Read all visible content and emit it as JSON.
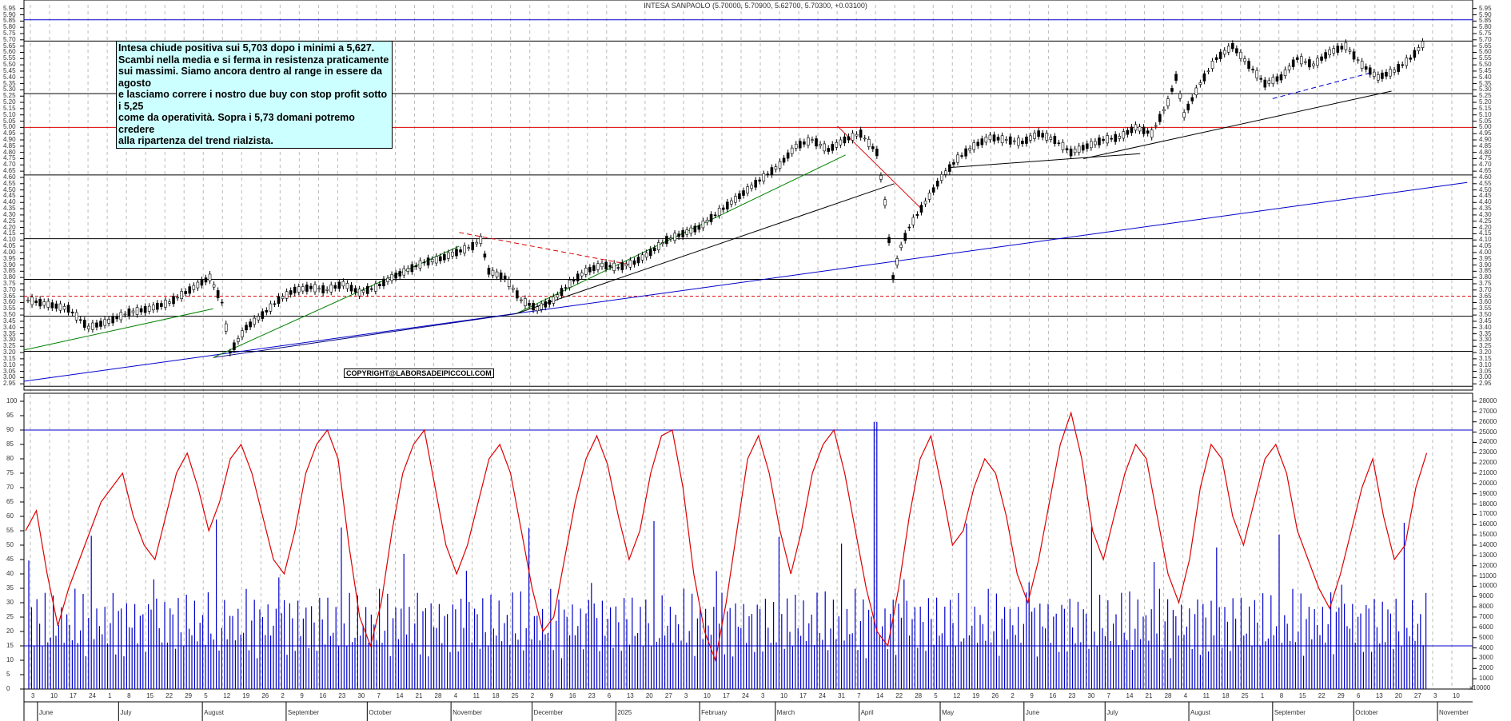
{
  "header": {
    "title": "INTESA SANPAOLO (5.70000, 5.70900, 5.62700, 5.70300, +0.03100)"
  },
  "annotation": {
    "text": "Intesa chiude positiva sui 5,703 dopo i minimi a 5,627.\nScambi nella media e si ferma in resistenza praticamente\nsui massimi. Siamo ancora dentro al range in essere da agosto\ne lasciamo correre i nostro due buy con stop profit sotto i 5,25\ncome da operatività.  Sopra i 5,73 domani potremo credere\nalla ripartenza del trend rialzista."
  },
  "copyright": "COPYRIGHT@LABORSADEIPICCOLI.COM",
  "volume_unit": "x10000",
  "chart_data": [
    {
      "type": "candlestick",
      "title": "INTESA SANPAOLO (5.70000, 5.70900, 5.62700, 5.70300, +0.03100)",
      "last": {
        "open": 5.7,
        "high": 5.709,
        "low": 5.627,
        "close": 5.703,
        "change": 0.031
      },
      "ylim": [
        2.9,
        5.98
      ],
      "yticks": [
        2.95,
        3.0,
        3.05,
        3.1,
        3.15,
        3.2,
        3.25,
        3.3,
        3.35,
        3.4,
        3.45,
        3.5,
        3.55,
        3.6,
        3.65,
        3.7,
        3.75,
        3.8,
        3.85,
        3.9,
        3.95,
        4.0,
        4.05,
        4.1,
        4.15,
        4.2,
        4.25,
        4.3,
        4.35,
        4.4,
        4.45,
        4.5,
        4.55,
        4.6,
        4.65,
        4.7,
        4.75,
        4.8,
        4.85,
        4.9,
        4.95,
        5.0,
        5.05,
        5.1,
        5.15,
        5.2,
        5.25,
        5.3,
        5.35,
        5.4,
        5.45,
        5.5,
        5.55,
        5.6,
        5.65,
        5.7,
        5.75,
        5.8,
        5.85,
        5.9,
        5.95
      ],
      "horizontal_levels": [
        {
          "value": 5.86,
          "color": "#0000cc"
        },
        {
          "value": 5.69,
          "color": "#000000"
        },
        {
          "value": 5.27,
          "color": "#000000"
        },
        {
          "value": 5.0,
          "color": "#dd0000"
        },
        {
          "value": 4.62,
          "color": "#000000"
        },
        {
          "value": 4.11,
          "color": "#000000"
        },
        {
          "value": 3.785,
          "color": "#000000"
        },
        {
          "value": 3.65,
          "color": "#dd0000",
          "dashed": true
        },
        {
          "value": 3.49,
          "color": "#000000"
        },
        {
          "value": 3.21,
          "color": "#000000"
        },
        {
          "value": 2.93,
          "color": "#000000"
        }
      ],
      "price_path": [
        [
          0,
          3.62
        ],
        [
          10,
          3.55
        ],
        [
          15,
          3.4
        ],
        [
          20,
          3.45
        ],
        [
          25,
          3.52
        ],
        [
          30,
          3.55
        ],
        [
          35,
          3.6
        ],
        [
          40,
          3.7
        ],
        [
          45,
          3.8
        ],
        [
          48,
          3.6
        ],
        [
          50,
          3.2
        ],
        [
          54,
          3.4
        ],
        [
          58,
          3.5
        ],
        [
          62,
          3.62
        ],
        [
          66,
          3.7
        ],
        [
          70,
          3.72
        ],
        [
          74,
          3.7
        ],
        [
          78,
          3.75
        ],
        [
          82,
          3.68
        ],
        [
          86,
          3.72
        ],
        [
          90,
          3.8
        ],
        [
          94,
          3.86
        ],
        [
          98,
          3.92
        ],
        [
          102,
          3.95
        ],
        [
          106,
          4.0
        ],
        [
          110,
          4.05
        ],
        [
          112,
          4.1
        ],
        [
          114,
          3.85
        ],
        [
          118,
          3.8
        ],
        [
          122,
          3.62
        ],
        [
          126,
          3.55
        ],
        [
          130,
          3.62
        ],
        [
          134,
          3.75
        ],
        [
          138,
          3.85
        ],
        [
          142,
          3.9
        ],
        [
          146,
          3.88
        ],
        [
          150,
          3.92
        ],
        [
          154,
          4.0
        ],
        [
          158,
          4.1
        ],
        [
          162,
          4.15
        ],
        [
          166,
          4.2
        ],
        [
          170,
          4.3
        ],
        [
          174,
          4.4
        ],
        [
          178,
          4.5
        ],
        [
          182,
          4.6
        ],
        [
          186,
          4.7
        ],
        [
          190,
          4.85
        ],
        [
          194,
          4.9
        ],
        [
          198,
          4.82
        ],
        [
          202,
          4.9
        ],
        [
          206,
          4.95
        ],
        [
          210,
          4.8
        ],
        [
          212,
          4.4
        ],
        [
          214,
          3.8
        ],
        [
          216,
          4.05
        ],
        [
          218,
          4.2
        ],
        [
          222,
          4.4
        ],
        [
          226,
          4.6
        ],
        [
          230,
          4.75
        ],
        [
          234,
          4.85
        ],
        [
          238,
          4.92
        ],
        [
          242,
          4.9
        ],
        [
          246,
          4.88
        ],
        [
          250,
          4.95
        ],
        [
          254,
          4.9
        ],
        [
          258,
          4.8
        ],
        [
          262,
          4.85
        ],
        [
          266,
          4.9
        ],
        [
          270,
          4.92
        ],
        [
          274,
          5.0
        ],
        [
          278,
          4.95
        ],
        [
          282,
          5.2
        ],
        [
          284,
          5.4
        ],
        [
          286,
          5.1
        ],
        [
          290,
          5.35
        ],
        [
          294,
          5.55
        ],
        [
          298,
          5.65
        ],
        [
          302,
          5.5
        ],
        [
          306,
          5.35
        ],
        [
          310,
          5.4
        ],
        [
          314,
          5.55
        ],
        [
          318,
          5.5
        ],
        [
          322,
          5.6
        ],
        [
          326,
          5.65
        ],
        [
          330,
          5.5
        ],
        [
          334,
          5.4
        ],
        [
          338,
          5.45
        ],
        [
          342,
          5.55
        ],
        [
          346,
          5.7
        ]
      ],
      "trendlines": [
        {
          "color": "#0000cc",
          "from": [
            "2024-05-27",
            2.97
          ],
          "to": [
            "2025-11-12",
            4.56
          ]
        },
        {
          "color": "#000080",
          "from": [
            "2024-08-05",
            3.16
          ],
          "to": [
            "2024-11-25",
            3.51
          ]
        },
        {
          "color": "#008000",
          "from": [
            "2024-05-27",
            3.22
          ],
          "to": [
            "2024-08-05",
            3.55
          ]
        },
        {
          "color": "#008000",
          "from": [
            "2024-08-05",
            3.16
          ],
          "to": [
            "2024-11-04",
            4.05
          ]
        },
        {
          "color": "#008000",
          "from": [
            "2024-11-25",
            3.51
          ],
          "to": [
            "2025-03-27",
            4.78
          ]
        },
        {
          "color": "#000000",
          "from": [
            "2024-11-25",
            3.51
          ],
          "to": [
            "2025-04-14",
            4.55
          ]
        },
        {
          "color": "#dd0000",
          "dashed": true,
          "from": [
            "2024-11-04",
            4.16
          ],
          "to": [
            "2025-01-07",
            3.9
          ]
        },
        {
          "color": "#dd0000",
          "from": [
            "2025-03-24",
            5.01
          ],
          "to": [
            "2025-04-24",
            4.35
          ]
        },
        {
          "color": "#000000",
          "from": [
            "2025-05-05",
            4.68
          ],
          "to": [
            "2025-07-14",
            4.79
          ]
        },
        {
          "color": "#000000",
          "from": [
            "2025-06-23",
            4.75
          ],
          "to": [
            "2025-10-15",
            5.29
          ]
        },
        {
          "color": "#0000cc",
          "dashed": true,
          "from": [
            "2025-09-01",
            5.23
          ],
          "to": [
            "2025-10-08",
            5.44
          ]
        }
      ]
    },
    {
      "type": "line+bar",
      "title": "Oscillator and Volume",
      "left_ylim": [
        0,
        100
      ],
      "left_yticks": [
        0,
        5,
        10,
        15,
        20,
        25,
        30,
        35,
        40,
        45,
        50,
        55,
        60,
        65,
        70,
        75,
        80,
        85,
        90,
        95,
        100
      ],
      "right_ylim": [
        0,
        28000
      ],
      "right_yticks": [
        1000,
        2000,
        3000,
        4000,
        5000,
        6000,
        7000,
        8000,
        9000,
        10000,
        11000,
        12000,
        13000,
        14000,
        15000,
        16000,
        17000,
        18000,
        19000,
        20000,
        21000,
        22000,
        23000,
        24000,
        25000,
        26000,
        27000,
        28000
      ],
      "right_unit": "x10000",
      "horizontal_levels": [
        {
          "value": 90,
          "color": "#0000cc"
        },
        {
          "value": 15,
          "color": "#0000cc"
        }
      ],
      "series": [
        {
          "name": "oscillator",
          "color": "#dd0000",
          "values": [
            55,
            62,
            40,
            22,
            35,
            45,
            55,
            65,
            70,
            75,
            60,
            50,
            45,
            60,
            75,
            82,
            70,
            55,
            65,
            80,
            85,
            75,
            60,
            45,
            40,
            55,
            75,
            85,
            90,
            80,
            50,
            25,
            15,
            30,
            55,
            75,
            85,
            90,
            70,
            50,
            40,
            50,
            65,
            80,
            85,
            75,
            55,
            35,
            20,
            25,
            45,
            65,
            80,
            88,
            78,
            60,
            45,
            55,
            75,
            88,
            90,
            70,
            40,
            20,
            10,
            30,
            55,
            80,
            88,
            75,
            55,
            40,
            55,
            75,
            85,
            90,
            75,
            55,
            35,
            20,
            15,
            35,
            60,
            80,
            88,
            70,
            50,
            55,
            70,
            80,
            75,
            60,
            40,
            30,
            45,
            65,
            85,
            96,
            80,
            55,
            45,
            60,
            75,
            85,
            80,
            60,
            40,
            30,
            45,
            70,
            85,
            80,
            60,
            50,
            65,
            80,
            85,
            75,
            55,
            45,
            35,
            28,
            40,
            55,
            70,
            80,
            60,
            45,
            50,
            70,
            82
          ]
        },
        {
          "name": "volume",
          "color": "#0000cc",
          "unit": "x10000",
          "note": "blue bars along bottom, mostly 2000-8000, spikes ~13000-16000, max ~26000 in early April 2025"
        }
      ]
    }
  ],
  "x_axis": {
    "day_ticks": [
      "3",
      "10",
      "17",
      "24",
      "1",
      "8",
      "15",
      "22",
      "29",
      "5",
      "12",
      "19",
      "26",
      "2",
      "9",
      "16",
      "23",
      "30",
      "7",
      "14",
      "21",
      "28",
      "4",
      "11",
      "18",
      "25",
      "2",
      "9",
      "16",
      "23",
      "6",
      "13",
      "20",
      "27",
      "3",
      "10",
      "17",
      "24",
      "3",
      "10",
      "17",
      "24",
      "31",
      "7",
      "14",
      "22",
      "28",
      "5",
      "12",
      "19",
      "26",
      "2",
      "9",
      "16",
      "23",
      "30",
      "7",
      "14",
      "21",
      "28",
      "4",
      "11",
      "18",
      "25",
      "1",
      "8",
      "15",
      "22",
      "29",
      "6",
      "13",
      "20",
      "27",
      "3",
      "10"
    ],
    "months": [
      "June",
      "July",
      "August",
      "September",
      "October",
      "November",
      "December",
      "2025",
      "February",
      "March",
      "April",
      "May",
      "June",
      "July",
      "August",
      "September",
      "October",
      "November"
    ]
  }
}
